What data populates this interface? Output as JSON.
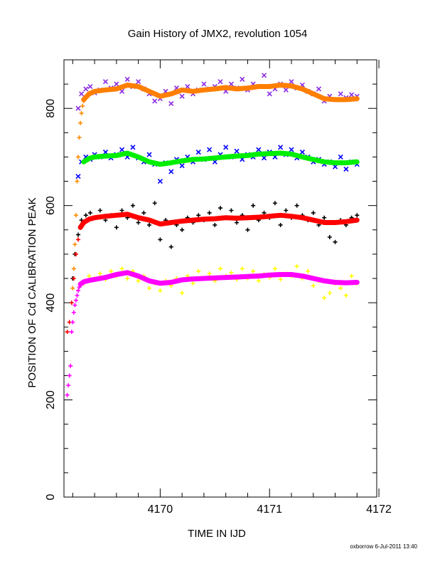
{
  "chart_data": {
    "type": "scatter",
    "title": "Gain History of JMX2, revolution 1054",
    "xlabel": "TIME IN IJD",
    "ylabel": "POSITION OF Cd CALIBRATION PEAK",
    "xlim": [
      4169.12,
      4171.98
    ],
    "ylim": [
      0,
      900
    ],
    "xticks": [
      "4170",
      "4171",
      "4172"
    ],
    "yticks": [
      "0",
      "200",
      "400",
      "600",
      "800"
    ],
    "grid": false,
    "footer": "oxborrow   6-Jul-2011 13:40",
    "series": [
      {
        "marker": "x",
        "color": "#8a2be2",
        "x": [
          4169.25,
          4169.28,
          4169.32,
          4169.36,
          4169.4,
          4169.45,
          4169.5,
          4169.55,
          4169.6,
          4169.65,
          4169.7,
          4169.75,
          4169.8,
          4169.85,
          4169.9,
          4169.95,
          4170.0,
          4170.05,
          4170.1,
          4170.15,
          4170.2,
          4170.25,
          4170.3,
          4170.35,
          4170.4,
          4170.45,
          4170.5,
          4170.55,
          4170.6,
          4170.65,
          4170.7,
          4170.75,
          4170.8,
          4170.85,
          4170.9,
          4170.95,
          4171.0,
          4171.05,
          4171.1,
          4171.15,
          4171.2,
          4171.25,
          4171.3,
          4171.35,
          4171.4,
          4171.45,
          4171.5,
          4171.55,
          4171.6,
          4171.65,
          4171.7,
          4171.75,
          4171.8
        ],
        "y": [
          800,
          830,
          840,
          845,
          832,
          838,
          855,
          842,
          850,
          835,
          860,
          845,
          855,
          840,
          830,
          815,
          820,
          835,
          810,
          842,
          825,
          845,
          830,
          838,
          850,
          840,
          845,
          855,
          835,
          850,
          842,
          860,
          838,
          850,
          845,
          868,
          830,
          840,
          850,
          838,
          855,
          842,
          848,
          835,
          830,
          840,
          815,
          825,
          818,
          830,
          822,
          828,
          825
        ]
      },
      {
        "marker": "+",
        "color": "#ff8c00",
        "x": [
          4169.2,
          4169.21,
          4169.22,
          4169.23,
          4169.24,
          4169.25,
          4169.26,
          4169.27,
          4169.28,
          4169.29,
          4169.3
        ],
        "y": [
          430,
          470,
          520,
          580,
          650,
          700,
          740,
          770,
          790,
          805,
          815
        ]
      },
      {
        "marker": "smooth",
        "color": "#ff7f00",
        "x": [
          4169.3,
          4169.35,
          4169.4,
          4169.5,
          4169.6,
          4169.7,
          4169.8,
          4169.9,
          4170.0,
          4170.1,
          4170.2,
          4170.3,
          4170.4,
          4170.5,
          4170.6,
          4170.7,
          4170.8,
          4170.9,
          4171.0,
          4171.1,
          4171.2,
          4171.3,
          4171.4,
          4171.5,
          4171.6,
          4171.7,
          4171.8
        ],
        "y": [
          818,
          830,
          835,
          838,
          840,
          848,
          845,
          835,
          825,
          830,
          838,
          835,
          838,
          840,
          843,
          840,
          842,
          845,
          845,
          848,
          846,
          840,
          830,
          820,
          818,
          818,
          820
        ]
      },
      {
        "marker": "x",
        "color": "#0000ff",
        "x": [
          4169.25,
          4169.28,
          4169.32,
          4169.36,
          4169.4,
          4169.45,
          4169.5,
          4169.55,
          4169.6,
          4169.65,
          4169.7,
          4169.75,
          4169.8,
          4169.85,
          4169.9,
          4169.95,
          4170.0,
          4170.05,
          4170.1,
          4170.15,
          4170.2,
          4170.25,
          4170.3,
          4170.35,
          4170.4,
          4170.45,
          4170.5,
          4170.55,
          4170.6,
          4170.65,
          4170.7,
          4170.75,
          4170.8,
          4170.85,
          4170.9,
          4170.95,
          4171.0,
          4171.05,
          4171.1,
          4171.15,
          4171.2,
          4171.25,
          4171.3,
          4171.35,
          4171.4,
          4171.45,
          4171.5,
          4171.55,
          4171.6,
          4171.65,
          4171.7,
          4171.75,
          4171.8
        ],
        "y": [
          660,
          690,
          700,
          695,
          705,
          700,
          710,
          698,
          705,
          715,
          700,
          720,
          698,
          690,
          705,
          685,
          650,
          688,
          670,
          695,
          682,
          700,
          690,
          710,
          695,
          715,
          690,
          705,
          720,
          700,
          712,
          695,
          705,
          700,
          715,
          698,
          710,
          700,
          720,
          705,
          715,
          698,
          710,
          700,
          690,
          695,
          685,
          690,
          680,
          700,
          675,
          690,
          685
        ]
      },
      {
        "marker": "smooth",
        "color": "#00ee00",
        "x": [
          4169.3,
          4169.35,
          4169.4,
          4169.5,
          4169.6,
          4169.7,
          4169.8,
          4169.9,
          4170.0,
          4170.1,
          4170.2,
          4170.3,
          4170.4,
          4170.5,
          4170.6,
          4170.7,
          4170.8,
          4170.9,
          4171.0,
          4171.1,
          4171.2,
          4171.3,
          4171.4,
          4171.5,
          4171.6,
          4171.7,
          4171.8
        ],
        "y": [
          690,
          697,
          700,
          702,
          703,
          708,
          700,
          690,
          685,
          688,
          692,
          695,
          696,
          698,
          700,
          702,
          703,
          706,
          707,
          708,
          706,
          700,
          695,
          690,
          688,
          688,
          690
        ]
      },
      {
        "marker": "+",
        "color": "#000000",
        "x": [
          4169.2,
          4169.22,
          4169.25,
          4169.28,
          4169.32,
          4169.36,
          4169.4,
          4169.45,
          4169.5,
          4169.55,
          4169.6,
          4169.65,
          4169.7,
          4169.75,
          4169.8,
          4169.85,
          4169.9,
          4169.95,
          4170.0,
          4170.05,
          4170.1,
          4170.15,
          4170.2,
          4170.25,
          4170.3,
          4170.35,
          4170.4,
          4170.45,
          4170.5,
          4170.55,
          4170.6,
          4170.65,
          4170.7,
          4170.75,
          4170.8,
          4170.85,
          4170.9,
          4170.95,
          4171.0,
          4171.05,
          4171.1,
          4171.15,
          4171.2,
          4171.25,
          4171.3,
          4171.35,
          4171.4,
          4171.45,
          4171.5,
          4171.55,
          4171.6,
          4171.65,
          4171.7,
          4171.75,
          4171.8
        ],
        "y": [
          450,
          500,
          540,
          570,
          580,
          585,
          575,
          590,
          570,
          580,
          555,
          590,
          575,
          600,
          565,
          585,
          560,
          605,
          530,
          570,
          515,
          560,
          550,
          575,
          565,
          580,
          570,
          585,
          560,
          595,
          575,
          590,
          565,
          580,
          550,
          600,
          570,
          585,
          575,
          605,
          560,
          590,
          575,
          600,
          580,
          570,
          585,
          560,
          575,
          535,
          525,
          570,
          560,
          575,
          580
        ]
      },
      {
        "marker": "+",
        "color": "#ff0000",
        "x": [
          4169.15,
          4169.17,
          4169.19,
          4169.21,
          4169.23,
          4169.25,
          4169.27
        ],
        "y": [
          340,
          360,
          400,
          450,
          500,
          530,
          555
        ]
      },
      {
        "marker": "smooth",
        "color": "#ff0000",
        "x": [
          4169.27,
          4169.3,
          4169.35,
          4169.4,
          4169.5,
          4169.6,
          4169.7,
          4169.8,
          4169.9,
          4170.0,
          4170.1,
          4170.2,
          4170.3,
          4170.4,
          4170.5,
          4170.6,
          4170.7,
          4170.8,
          4170.9,
          4171.0,
          4171.1,
          4171.2,
          4171.3,
          4171.4,
          4171.5,
          4171.6,
          4171.7,
          4171.8
        ],
        "y": [
          555,
          565,
          572,
          575,
          578,
          580,
          582,
          575,
          570,
          562,
          565,
          568,
          570,
          572,
          573,
          575,
          574,
          575,
          576,
          578,
          580,
          578,
          575,
          570,
          565,
          565,
          567,
          570
        ]
      },
      {
        "marker": "+",
        "color": "#ffff00",
        "x": [
          4169.3,
          4169.35,
          4169.4,
          4169.45,
          4169.5,
          4169.55,
          4169.6,
          4169.65,
          4169.7,
          4169.75,
          4169.8,
          4169.85,
          4169.9,
          4169.95,
          4170.0,
          4170.05,
          4170.1,
          4170.15,
          4170.2,
          4170.25,
          4170.3,
          4170.35,
          4170.4,
          4170.45,
          4170.5,
          4170.55,
          4170.6,
          4170.65,
          4170.7,
          4170.75,
          4170.8,
          4170.85,
          4170.9,
          4170.95,
          4171.0,
          4171.05,
          4171.1,
          4171.15,
          4171.2,
          4171.25,
          4171.3,
          4171.35,
          4171.4,
          4171.45,
          4171.5,
          4171.55,
          4171.6,
          4171.65,
          4171.7,
          4171.75,
          4171.8
        ],
        "y": [
          440,
          455,
          450,
          460,
          448,
          465,
          455,
          470,
          450,
          465,
          445,
          455,
          430,
          440,
          425,
          445,
          435,
          450,
          420,
          455,
          440,
          465,
          450,
          460,
          445,
          470,
          455,
          462,
          448,
          470,
          450,
          465,
          445,
          458,
          452,
          470,
          448,
          460,
          455,
          475,
          450,
          465,
          435,
          445,
          410,
          420,
          440,
          430,
          415,
          455,
          440
        ]
      },
      {
        "marker": "+",
        "color": "#ff00ff",
        "x": [
          4169.15,
          4169.16,
          4169.17,
          4169.18,
          4169.19,
          4169.2,
          4169.21,
          4169.22,
          4169.23,
          4169.24,
          4169.25,
          4169.26,
          4169.27
        ],
        "y": [
          210,
          230,
          250,
          270,
          340,
          360,
          380,
          395,
          405,
          415,
          425,
          432,
          438
        ]
      },
      {
        "marker": "smooth",
        "color": "#ff00ff",
        "x": [
          4169.27,
          4169.3,
          4169.35,
          4169.4,
          4169.5,
          4169.6,
          4169.7,
          4169.8,
          4169.9,
          4170.0,
          4170.1,
          4170.2,
          4170.3,
          4170.4,
          4170.5,
          4170.6,
          4170.7,
          4170.8,
          4170.9,
          4171.0,
          4171.1,
          4171.2,
          4171.3,
          4171.4,
          4171.5,
          4171.6,
          4171.7,
          4171.8
        ],
        "y": [
          438,
          443,
          446,
          448,
          452,
          458,
          462,
          455,
          445,
          440,
          442,
          447,
          449,
          450,
          451,
          452,
          453,
          454,
          455,
          457,
          458,
          458,
          455,
          450,
          445,
          442,
          441,
          442
        ]
      }
    ]
  }
}
